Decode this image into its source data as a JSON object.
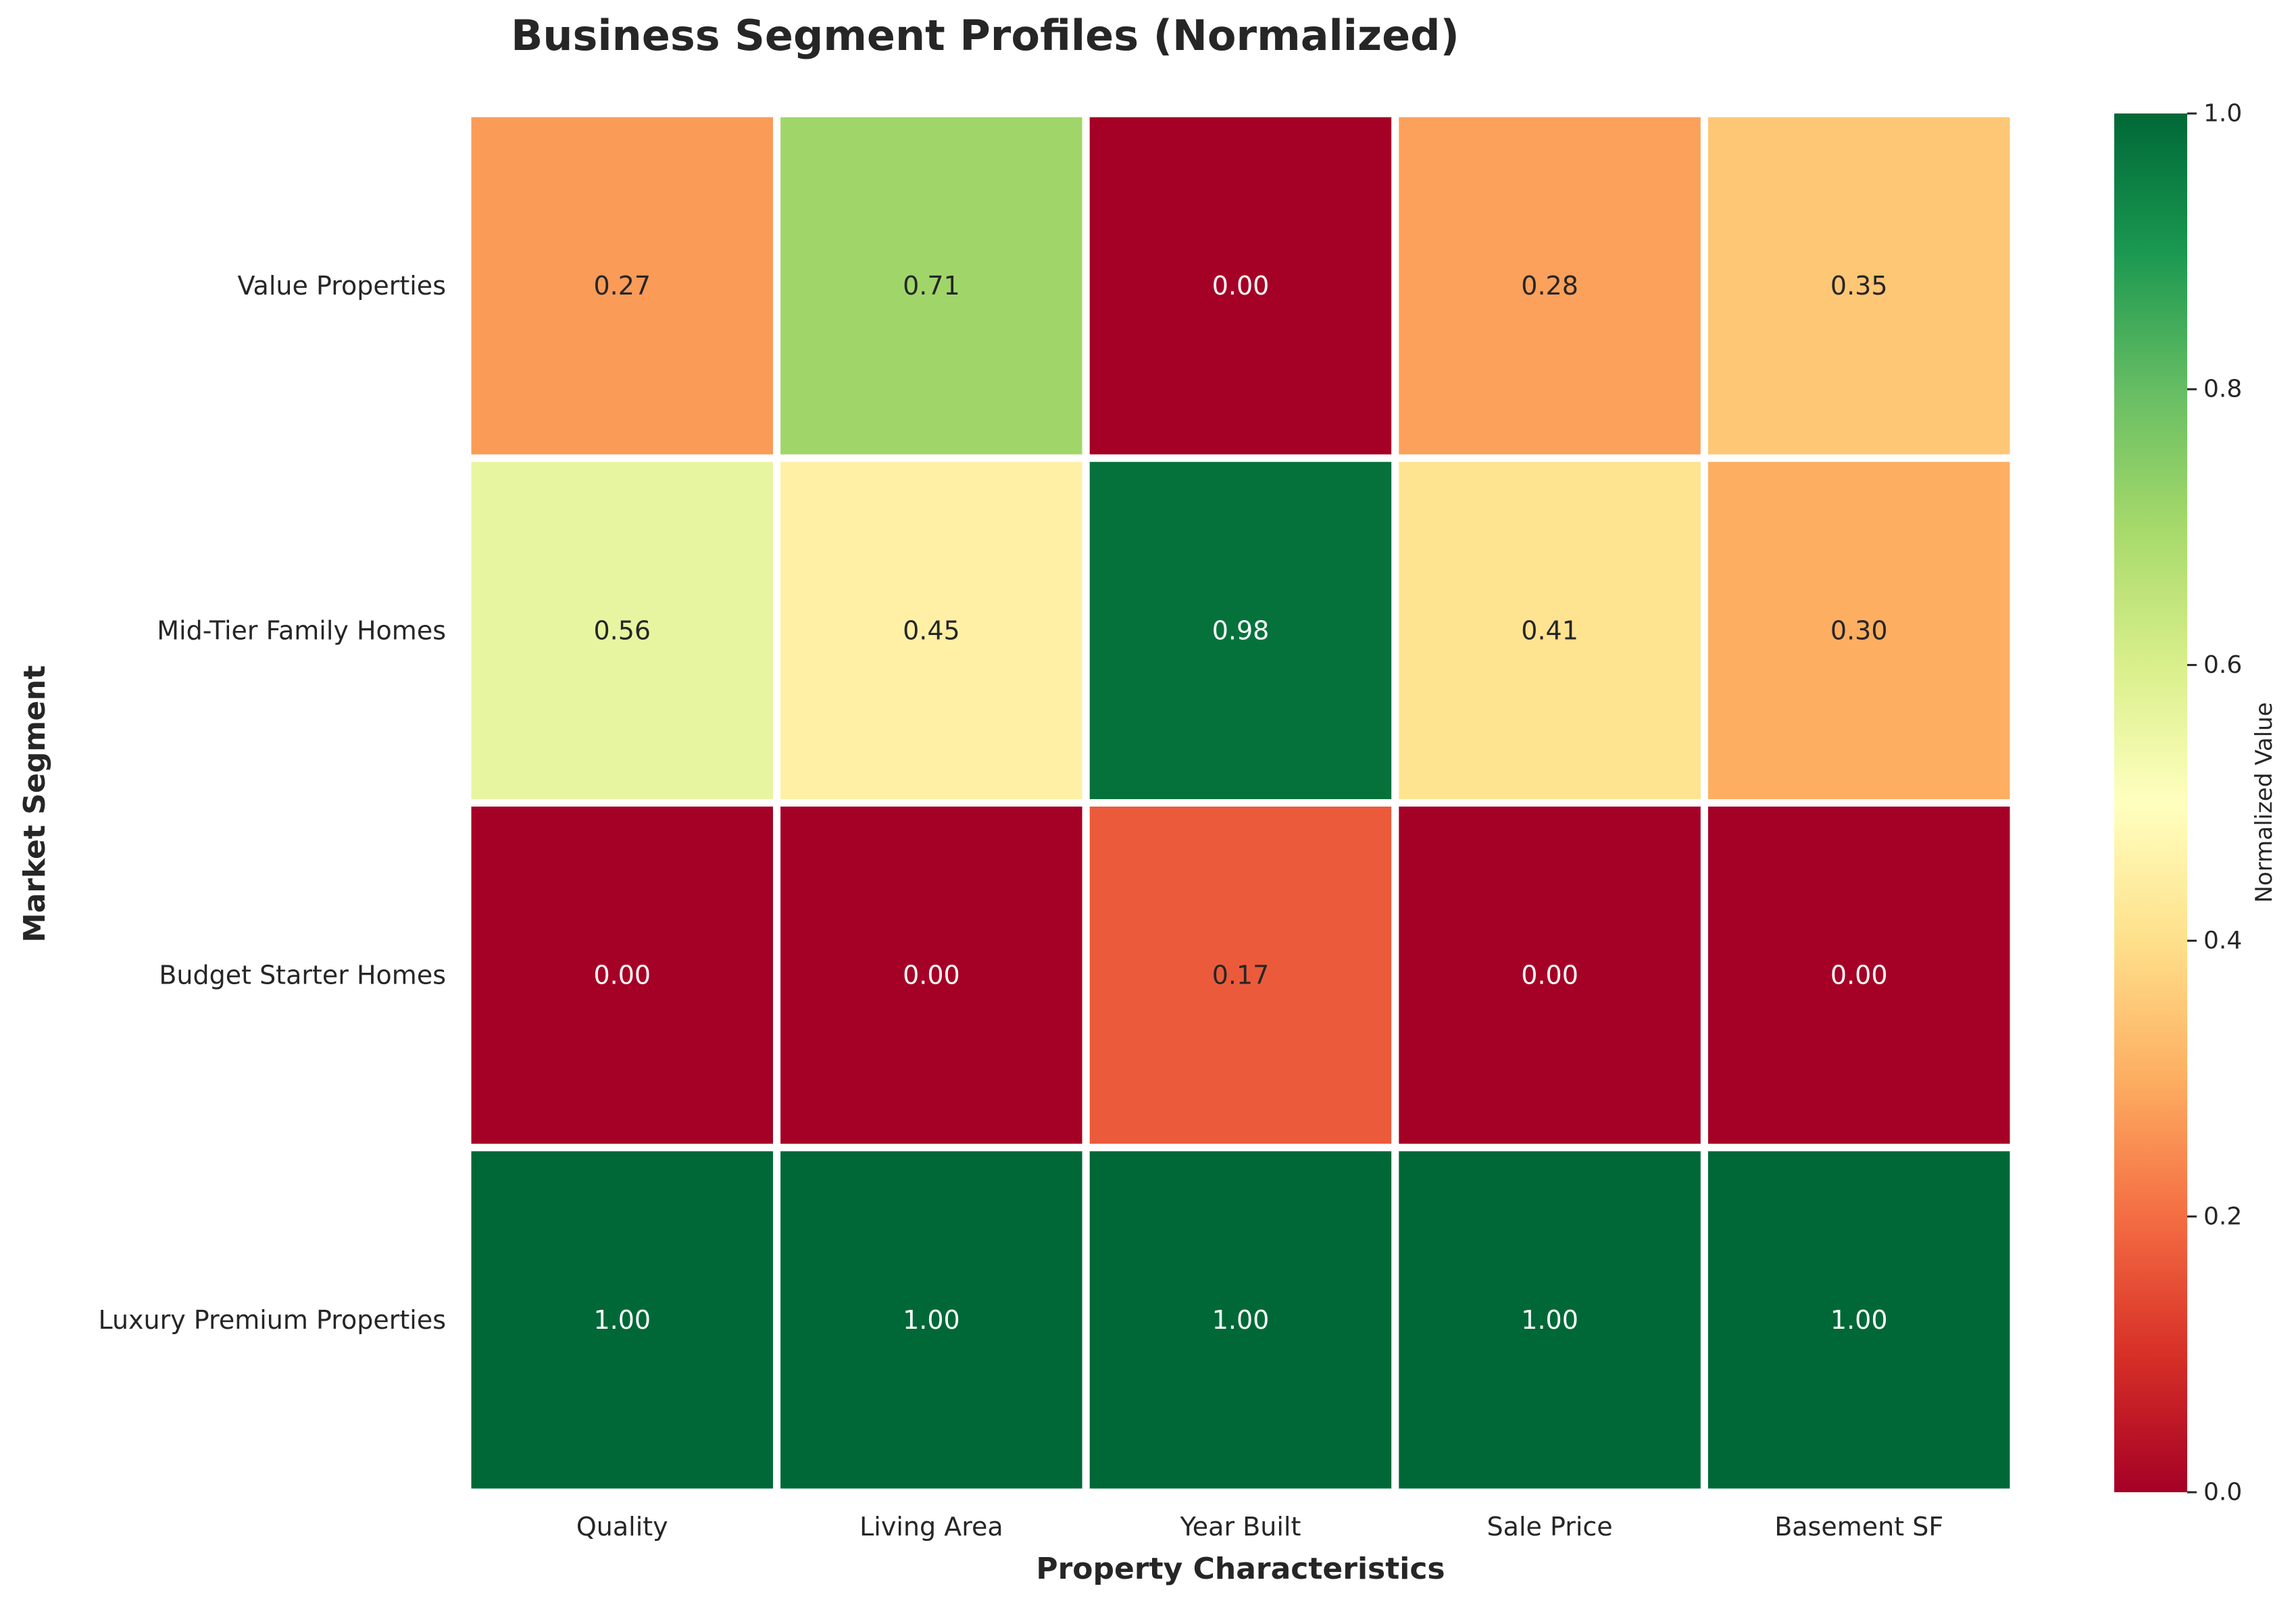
{
  "chart_data": {
    "type": "heatmap",
    "title": "Business Segment Profiles (Normalized)",
    "xlabel": "Property Characteristics",
    "ylabel": "Market Segment",
    "columns": [
      "Quality",
      "Living Area",
      "Year Built",
      "Sale Price",
      "Basement SF"
    ],
    "rows": [
      "Value Properties",
      "Mid-Tier Family Homes",
      "Budget Starter Homes",
      "Luxury Premium Properties"
    ],
    "values": [
      [
        0.27,
        0.71,
        0.0,
        0.28,
        0.35
      ],
      [
        0.56,
        0.45,
        0.98,
        0.41,
        0.3
      ],
      [
        0.0,
        0.0,
        0.17,
        0.0,
        0.0
      ],
      [
        1.0,
        1.0,
        1.0,
        1.0,
        1.0
      ]
    ],
    "value_format": "0.00",
    "colormap": "RdYlGn",
    "vmin": 0.0,
    "vmax": 1.0,
    "colorbar": {
      "label": "Normalized Value",
      "ticks": [
        "0.0",
        "0.2",
        "0.4",
        "0.6",
        "0.8",
        "1.0"
      ]
    },
    "cell_border_color": "#ffffff",
    "grid": false
  }
}
